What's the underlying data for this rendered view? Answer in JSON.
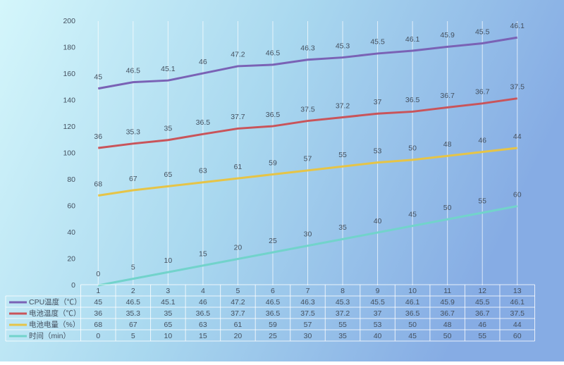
{
  "chart_data": {
    "type": "line",
    "stacked": true,
    "categories": [
      "1",
      "2",
      "3",
      "4",
      "5",
      "6",
      "7",
      "8",
      "9",
      "10",
      "11",
      "12",
      "13"
    ],
    "series": [
      {
        "name": "CPU温度（℃）",
        "color": "#7a62b5",
        "values": [
          45,
          46.5,
          45.1,
          46,
          47.2,
          46.5,
          46.3,
          45.3,
          45.5,
          46.1,
          45.9,
          45.5,
          46.1
        ]
      },
      {
        "name": "电池温度（℃）",
        "color": "#c9545a",
        "values": [
          36,
          35.3,
          35,
          36.5,
          37.7,
          36.5,
          37.5,
          37.2,
          37,
          36.5,
          36.7,
          36.7,
          37.5
        ]
      },
      {
        "name": "电池电量（%）",
        "color": "#e6c447",
        "values": [
          68,
          67,
          65,
          63,
          61,
          59,
          57,
          55,
          53,
          50,
          48,
          46,
          44
        ]
      },
      {
        "name": "时间（min）",
        "color": "#72d3cb",
        "values": [
          0,
          5,
          10,
          15,
          20,
          25,
          30,
          35,
          40,
          45,
          50,
          55,
          60
        ]
      }
    ],
    "ylim": [
      0,
      200
    ],
    "yticks": [
      0,
      20,
      40,
      60,
      80,
      100,
      120,
      140,
      160,
      180,
      200
    ],
    "grid": true,
    "data_table": true
  }
}
